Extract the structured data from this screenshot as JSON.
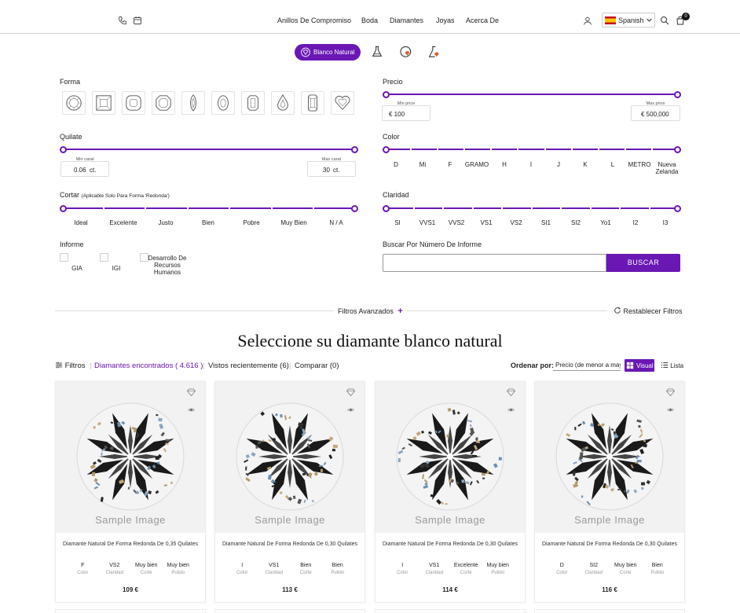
{
  "header": {
    "nav": [
      "Anillos De Compromiso",
      "Boda",
      "Diamantes",
      "Joyas",
      "Acerca De"
    ],
    "language": "Spanish",
    "cart_count": "0"
  },
  "diamond_types": {
    "active_label": "Blanco Natural"
  },
  "filters": {
    "forma": {
      "label": "Forma",
      "shapes": [
        "round-icon",
        "princess-icon",
        "cushion-icon",
        "asscher-icon",
        "marquise-icon",
        "oval-icon",
        "emerald-icon",
        "pear-icon",
        "radiant-icon",
        "heart-icon"
      ]
    },
    "precio": {
      "label": "Precio",
      "min_caption": "Min price",
      "max_caption": "Max price",
      "min_value": "€ 100",
      "max_value": "€ 500,000"
    },
    "quilate": {
      "label": "Quilate",
      "min_caption": "Min carat",
      "max_caption": "Max carat",
      "min_value": "0.06",
      "max_value": "30",
      "unit": "ct."
    },
    "color": {
      "label": "Color",
      "ticks": [
        "D",
        "Mi",
        "F",
        "GRAMO",
        "H",
        "I",
        "J",
        "K",
        "L",
        "METRO",
        "Nueva Zelanda"
      ]
    },
    "cortar": {
      "label": "Cortar",
      "note": "(Aplicable Solo Para Forma 'Redonda')",
      "ticks": [
        "Ideal",
        "Excelente",
        "Justo",
        "Bien",
        "Pobre",
        "Muy Bien",
        "N / A"
      ]
    },
    "claridad": {
      "label": "Claridad",
      "ticks": [
        "SI",
        "VVS1",
        "VVS2",
        "VS1",
        "VS2",
        "SI1",
        "SI2",
        "Yo1",
        "I2",
        "I3"
      ]
    },
    "informe": {
      "label": "Informe",
      "options": [
        "GIA",
        "IGI",
        "Desarrollo De Recursos Humanos"
      ]
    },
    "report_search": {
      "label": "Buscar Por Número De Informe",
      "button": "BUSCAR"
    },
    "advanced": "Filtros Avanzados",
    "reset": "Restablecer Filtros"
  },
  "results": {
    "title": "Seleccione su diamante blanco natural",
    "filters_label": "Filtros",
    "found": "Diamantes encontrados ( 4.616 )",
    "recent": "Vistos recientemente (6)",
    "compare": "Comparar (0)",
    "sort_label": "Ordenar por:",
    "sort_value": "Precio (de menor a mayor)",
    "view_visual": "Visual",
    "view_list": "Lista"
  },
  "cards": [
    {
      "image_text": "Sample Image",
      "name": "Diamante Natural De Forma Redonda De 0,35 Quilates",
      "specs": [
        {
          "v": "F",
          "k": "Color"
        },
        {
          "v": "VS2",
          "k": "Claridad"
        },
        {
          "v": "Muy bien",
          "k": "Corte"
        },
        {
          "v": "Muy bien",
          "k": "Pulido"
        }
      ],
      "price": "109 €"
    },
    {
      "image_text": "Sample Image",
      "name": "Diamante Natural De Forma Redonda De 0,30 Quilates",
      "specs": [
        {
          "v": "I",
          "k": "Color"
        },
        {
          "v": "VS1",
          "k": "Claridad"
        },
        {
          "v": "Bien",
          "k": "Corte"
        },
        {
          "v": "Bien",
          "k": "Pulido"
        }
      ],
      "price": "113 €"
    },
    {
      "image_text": "Sample Image",
      "name": "Diamante Natural De Forma Redonda De 0,30 Quilates",
      "specs": [
        {
          "v": "I",
          "k": "Color"
        },
        {
          "v": "VS1",
          "k": "Claridad"
        },
        {
          "v": "Excelente",
          "k": "Corte"
        },
        {
          "v": "Muy bien",
          "k": "Pulido"
        }
      ],
      "price": "114 €"
    },
    {
      "image_text": "Sample Image",
      "name": "Diamante Natural De Forma Redonda De 0,30 Quilates",
      "specs": [
        {
          "v": "D",
          "k": "Color"
        },
        {
          "v": "SI2",
          "k": "Claridad"
        },
        {
          "v": "Muy bien",
          "k": "Corte"
        },
        {
          "v": "Bien",
          "k": "Pulido"
        }
      ],
      "price": "116 €"
    }
  ],
  "colors": {
    "accent": "#6a17b4"
  }
}
